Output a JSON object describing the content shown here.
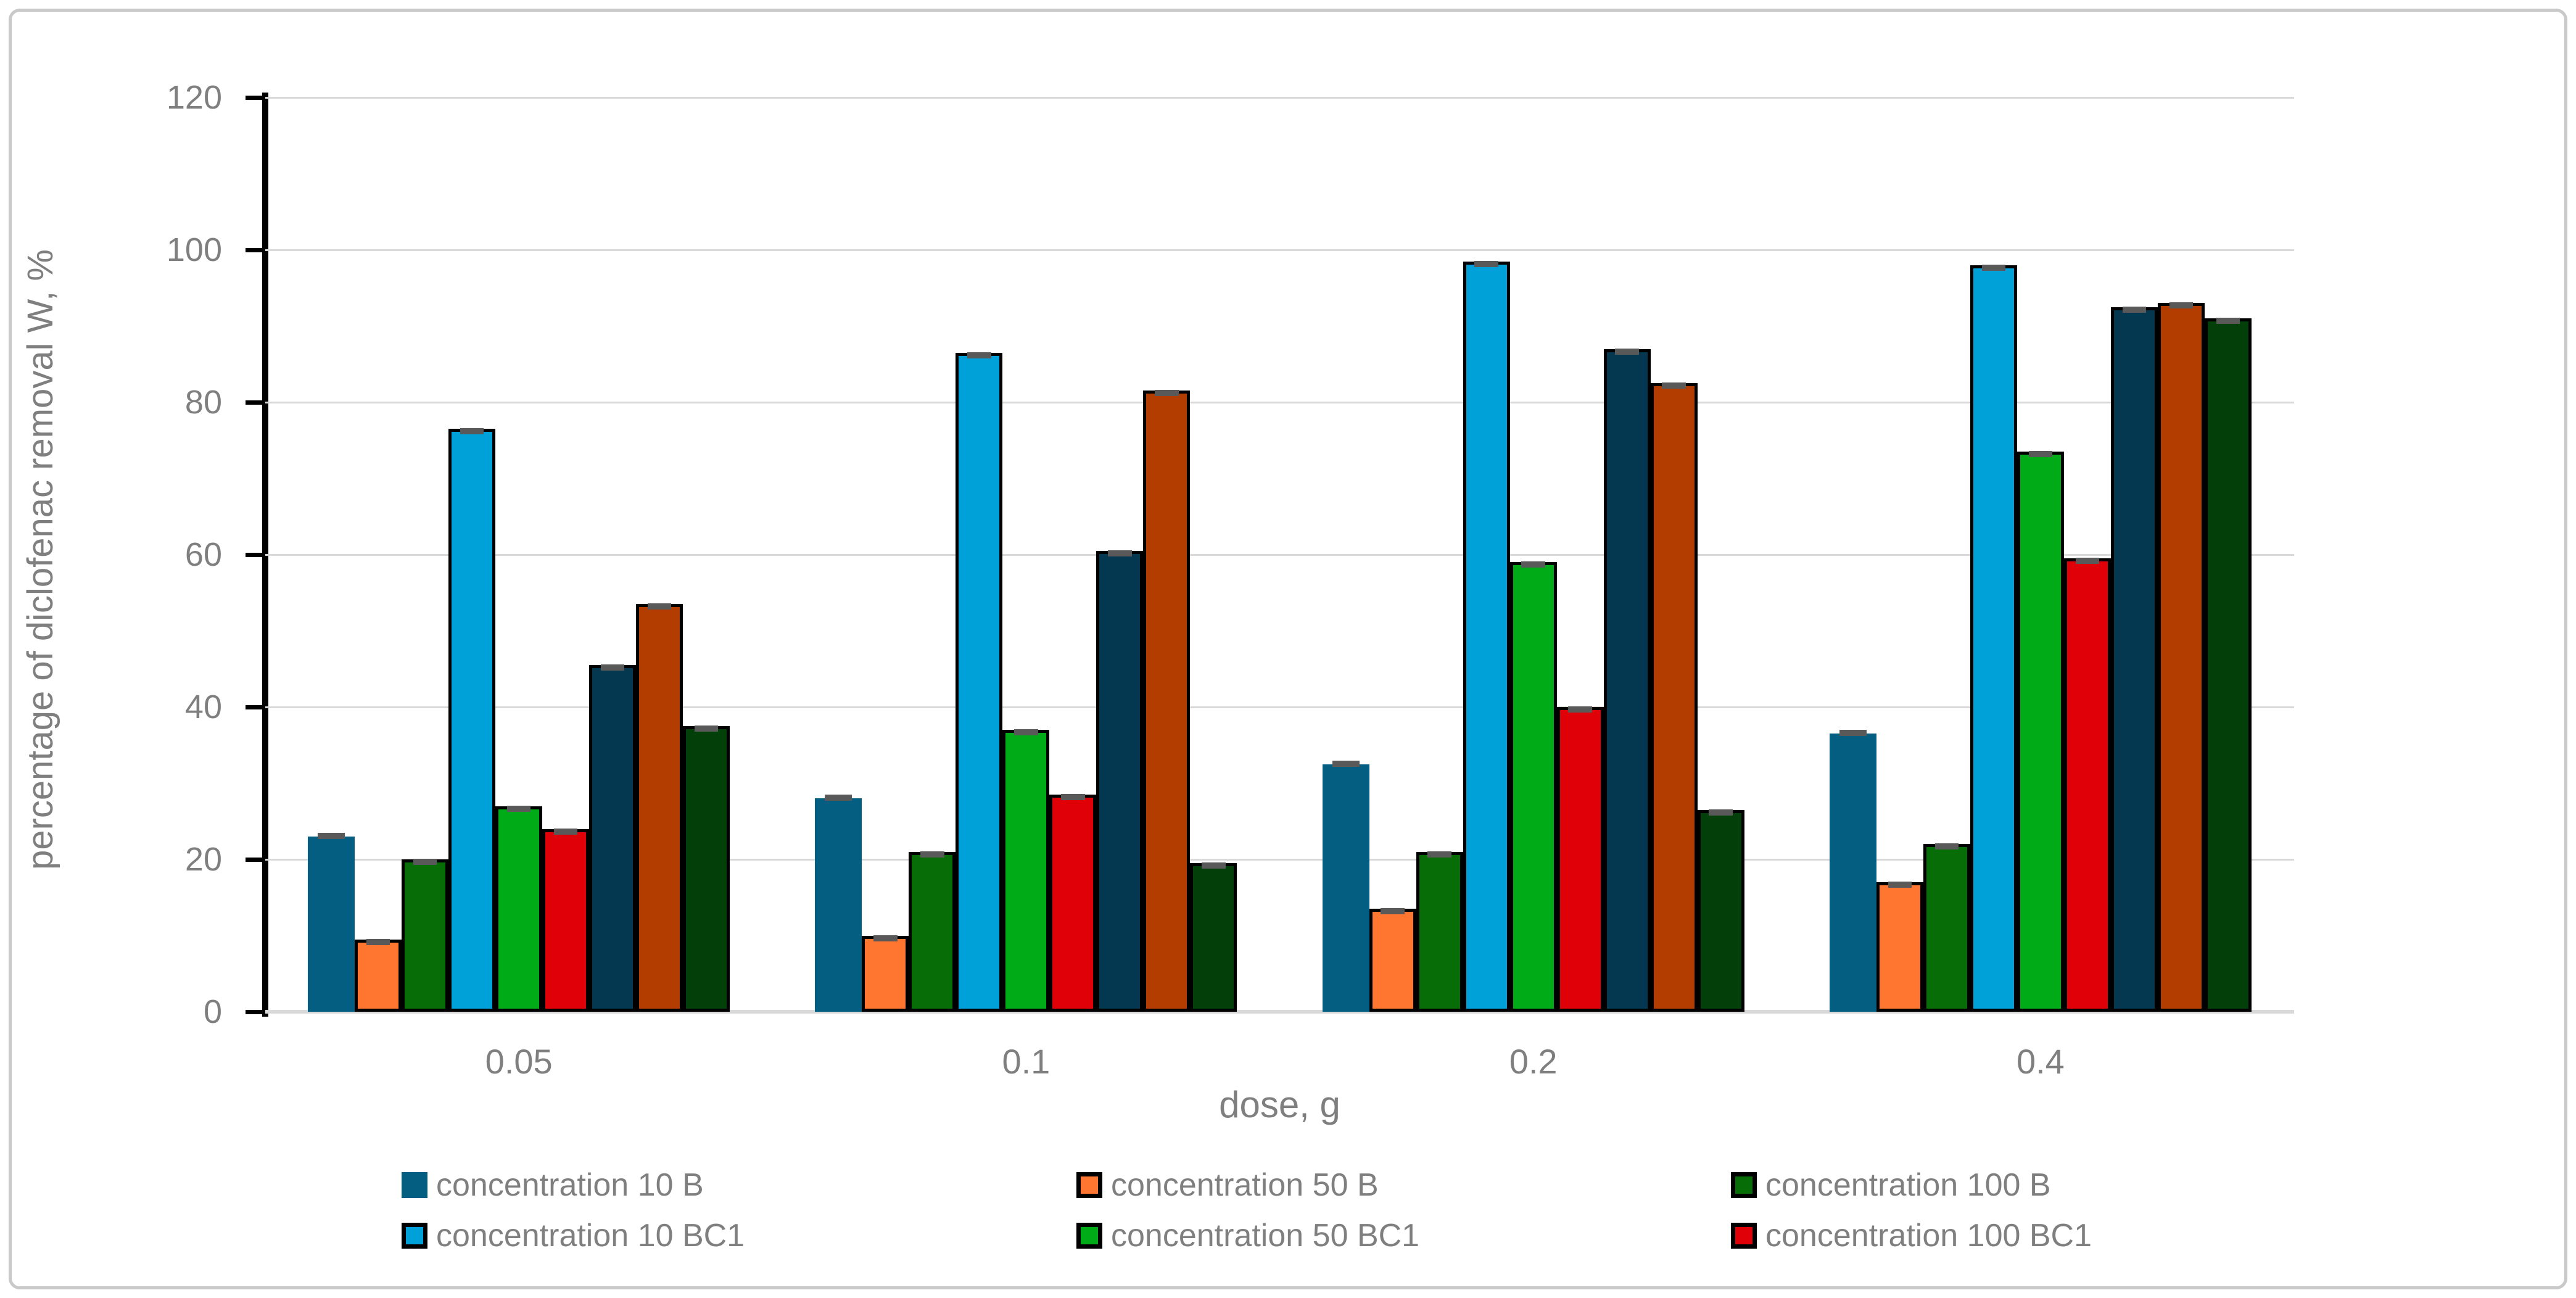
{
  "chart_data": {
    "type": "bar",
    "title": "",
    "xlabel": "dose, g",
    "ylabel": "percentage of diclofenac removal W, %",
    "ylim": [
      0,
      120
    ],
    "y_ticks": [
      0,
      20,
      40,
      60,
      80,
      100,
      120
    ],
    "y_tick_labels": [
      "0",
      "20",
      "40",
      "60",
      "80",
      "100",
      "120"
    ],
    "grid": true,
    "legend_position": "bottom",
    "categories": [
      "0.05",
      "0.1",
      "0.2",
      "0.4"
    ],
    "series": [
      {
        "name": "concentration 10 B",
        "color": "#045E81",
        "outlined": false,
        "in_legend": true,
        "values": [
          23,
          28,
          32.5,
          36.5
        ]
      },
      {
        "name": "concentration 50 B",
        "color": "#FF7630",
        "outlined": true,
        "in_legend": true,
        "values": [
          9.5,
          10,
          13.5,
          17
        ]
      },
      {
        "name": "concentration 100 B",
        "color": "#076D07",
        "outlined": true,
        "in_legend": true,
        "values": [
          20,
          21,
          21,
          22
        ]
      },
      {
        "name": "concentration 10 BC1",
        "color": "#00A0D8",
        "outlined": true,
        "in_legend": true,
        "values": [
          76.5,
          86.5,
          98.5,
          98
        ]
      },
      {
        "name": "concentration 50 BC1",
        "color": "#00AB18",
        "outlined": true,
        "in_legend": true,
        "values": [
          27,
          37,
          59,
          73.5
        ]
      },
      {
        "name": "concentration 100 BC1",
        "color": "#E00008",
        "outlined": true,
        "in_legend": true,
        "values": [
          24,
          28.5,
          40,
          59.5
        ]
      },
      {
        "name": "unlabeled series (dark navy)",
        "color": "#033850",
        "outlined": true,
        "in_legend": false,
        "values": [
          45.5,
          60.5,
          87,
          92.5
        ]
      },
      {
        "name": "unlabeled series (rust brown)",
        "color": "#B33D00",
        "outlined": true,
        "in_legend": false,
        "values": [
          53.5,
          81.5,
          82.5,
          93
        ]
      },
      {
        "name": "unlabeled series (dark forest green)",
        "color": "#034009",
        "outlined": true,
        "in_legend": false,
        "values": [
          37.5,
          19.5,
          26.5,
          91
        ]
      }
    ],
    "error_caps": {
      "shown": true,
      "color": "#595959"
    },
    "colors": {
      "gridline": "#d9d9d9",
      "axis_line": "#000000",
      "text": "#7f7f7f",
      "background": "#ffffff",
      "frame_border": "#c9c9c9"
    }
  }
}
